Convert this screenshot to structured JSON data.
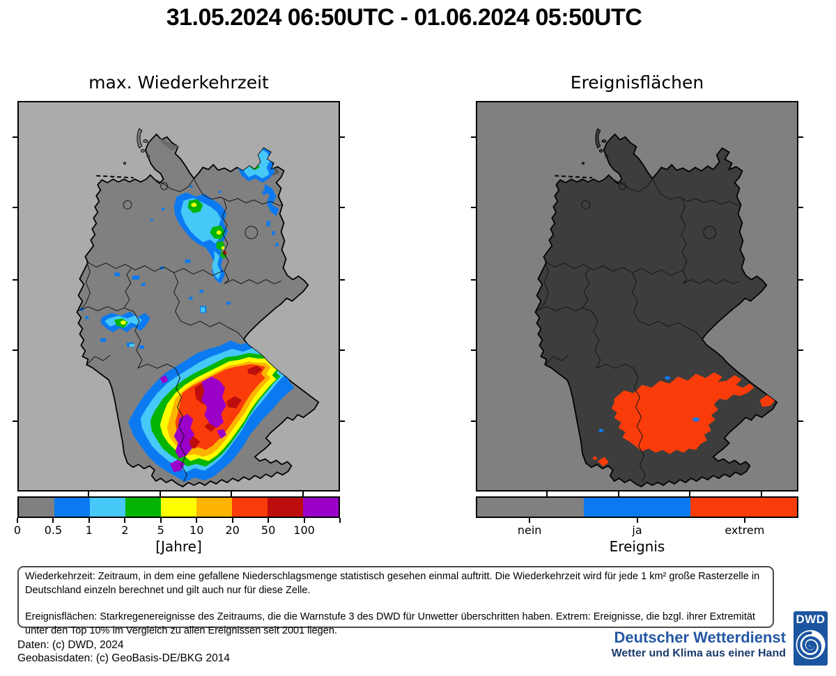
{
  "title": "31.05.2024 06:50UTC - 01.06.2024 05:50UTC",
  "panels": {
    "left": {
      "title": "max. Wiederkehrzeit",
      "colorbar": {
        "tick_labels": [
          "0",
          "0.5",
          "1",
          "2",
          "5",
          "10",
          "20",
          "50",
          "100"
        ],
        "unit_label": "[Jahre]",
        "colors": [
          "#808080",
          "#0b7af0",
          "#46c8f8",
          "#04b404",
          "#ffff00",
          "#fdb400",
          "#fa3c0a",
          "#bd0d0d",
          "#9a00c8"
        ]
      },
      "map_background": "#ababab",
      "country_fill": "#808080"
    },
    "right": {
      "title": "Ereignisflächen",
      "colorbar": {
        "tick_labels": [
          "nein",
          "ja",
          "extrem"
        ],
        "unit_label": "Ereignis",
        "colors": [
          "#808080",
          "#0b7af0",
          "#fa3c0a"
        ]
      },
      "map_background": "#808080",
      "country_fill": "#3d3d3d"
    }
  },
  "description_box": {
    "paragraph1": "Wiederkehrzeit: Zeitraum, in dem eine gefallene Niederschlagsmenge statistisch gesehen einmal auftritt. Die Wiederkehrzeit wird für jede 1 km² große Rasterzelle in Deutschland einzeln berechnet und gilt auch nur für diese Zelle.",
    "paragraph2": "Ereignisflächen: Starkregenereignisse des Zeitraums, die die Warnstufe 3 des DWD für Unwetter überschritten  haben. Extrem: Ereignisse, die bzgl. ihrer Extremität unter den Top 10% im Vergleich zu allen Ereignissen seit 2001 liegen."
  },
  "footer": {
    "credit_line1": "Daten: (c) DWD, 2024",
    "credit_line2": "Geobasisdaten: (c) GeoBasis-DE/BKG 2014",
    "logo": {
      "org_name": "Deutscher Wetterdienst",
      "slogan": "Wetter und Klima aus einer Hand",
      "logo_text": "DWD",
      "brand_color": "#2457a4",
      "logo_blue": "#1b55a0"
    }
  },
  "chart_data": [
    {
      "type": "heatmap",
      "title": "max. Wiederkehrzeit",
      "region": "Deutschland",
      "scale_ticks": [
        "0",
        "0.5",
        "1",
        "2",
        "5",
        "10",
        "20",
        "50",
        "100"
      ],
      "unit": "[Jahre]",
      "palette": [
        "#808080",
        "#0b7af0",
        "#46c8f8",
        "#04b404",
        "#ffff00",
        "#fdb400",
        "#fa3c0a",
        "#bd0d0d",
        "#9a00c8"
      ],
      "pattern": "Große zusammenhängende Fläche mit Wiederkehrzeiten bis über 100 Jahre (violett/rot) über Südbayern, Schwaben und dem Alpenvorland; kleinere Flächen (0.5-10 Jahre) über Vorpommern/Rügen, Altmark/Sachsen-Anhalt und dem Moselraum."
    },
    {
      "type": "choropleth",
      "title": "Ereignisflächen",
      "region": "Deutschland",
      "categories": [
        "nein",
        "ja",
        "extrem"
      ],
      "category_colors": [
        "#808080",
        "#0b7af0",
        "#fa3c0a"
      ],
      "axis_label": "Ereignis",
      "pattern": "Zusammenhängende extrem-Fläche (orangerot) über Südbayern und Schwaben, kleiner Ableger bei Passau; vereinzelte winzige ja-Flächen (blau)."
    }
  ]
}
